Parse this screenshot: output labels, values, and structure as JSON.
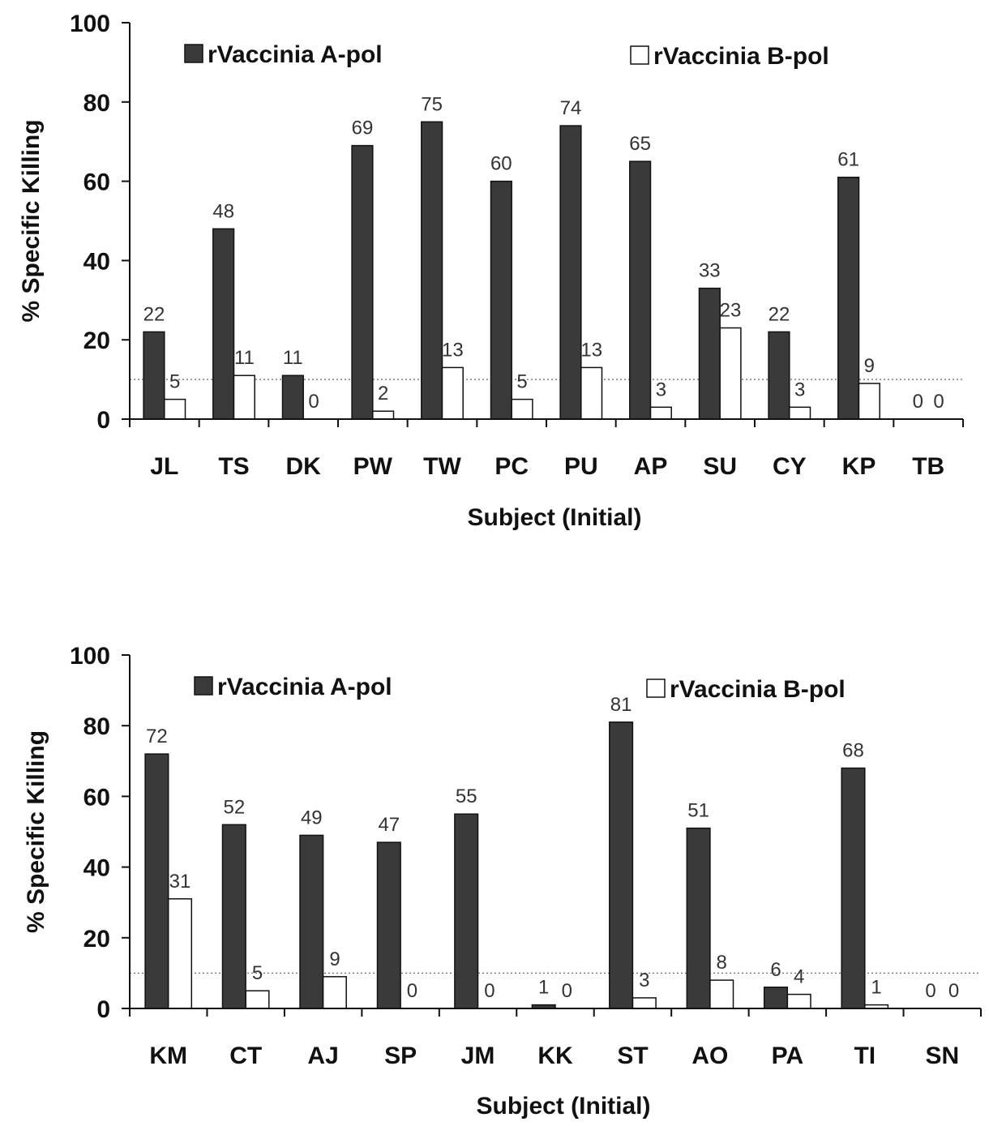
{
  "chart_data": [
    {
      "type": "bar",
      "title": "",
      "xlabel": "Subject (Initial)",
      "ylabel": "% Specific Killing",
      "ylim": [
        0,
        100
      ],
      "yticks": [
        0,
        20,
        40,
        60,
        80,
        100
      ],
      "threshold": 10,
      "legend_position": "top",
      "categories": [
        "JL",
        "TS",
        "DK",
        "PW",
        "TW",
        "PC",
        "PU",
        "AP",
        "SU",
        "CY",
        "KP",
        "TB"
      ],
      "series": [
        {
          "name": "rVaccinia A-pol",
          "color": "#3a3a3a",
          "values": [
            22,
            48,
            11,
            69,
            75,
            60,
            74,
            65,
            33,
            22,
            61,
            0
          ]
        },
        {
          "name": "rVaccinia B-pol",
          "color": "#ffffff",
          "values": [
            5,
            11,
            0,
            2,
            13,
            5,
            13,
            3,
            23,
            3,
            9,
            0
          ]
        }
      ]
    },
    {
      "type": "bar",
      "title": "",
      "xlabel": "Subject (Initial)",
      "ylabel": "% Specific Killing",
      "ylim": [
        0,
        100
      ],
      "yticks": [
        0,
        20,
        40,
        60,
        80,
        100
      ],
      "threshold": 10,
      "legend_position": "top",
      "categories": [
        "KM",
        "CT",
        "AJ",
        "SP",
        "JM",
        "KK",
        "ST",
        "AO",
        "PA",
        "TI",
        "SN"
      ],
      "series": [
        {
          "name": "rVaccinia A-pol",
          "color": "#3a3a3a",
          "values": [
            72,
            52,
            49,
            47,
            55,
            1,
            81,
            51,
            6,
            68,
            0
          ]
        },
        {
          "name": "rVaccinia B-pol",
          "color": "#ffffff",
          "values": [
            31,
            5,
            9,
            0,
            0,
            0,
            3,
            8,
            4,
            1,
            0
          ]
        }
      ]
    }
  ]
}
